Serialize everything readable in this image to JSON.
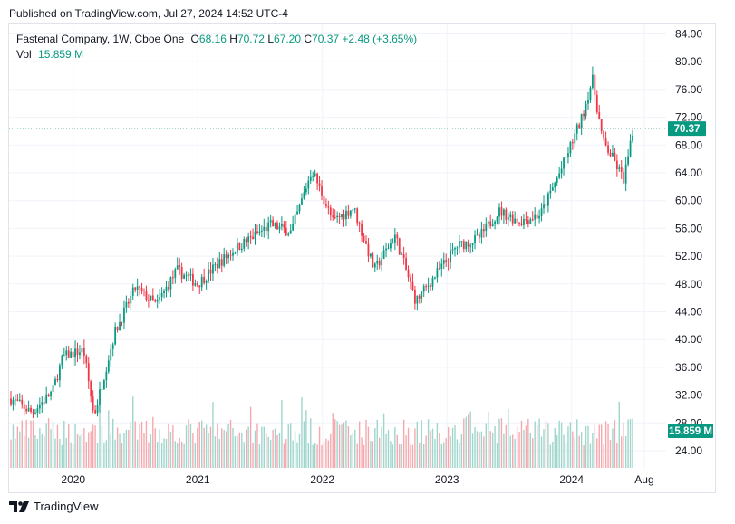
{
  "header": {
    "published": "Published on TradingView.com, Jul 27, 2024 14:52 UTC-4"
  },
  "legend": {
    "symbol": "Fastenal Company, 1W, Cboe One",
    "o_label": "O",
    "o": "68.16",
    "h_label": "H",
    "h": "70.72",
    "l_label": "L",
    "l": "67.20",
    "c_label": "C",
    "c": "70.37",
    "change": "+2.48 (+3.65%)",
    "vol_label": "Vol",
    "vol": "15.859 M"
  },
  "footer": {
    "brand": "TradingView"
  },
  "colors": {
    "up": "#089981",
    "down": "#f23645",
    "up_vol": "#9fd6cc",
    "down_vol": "#f5a9af",
    "grid": "#f0f3fa"
  },
  "chart_data": {
    "type": "candlestick",
    "title": "Fastenal Company, 1W, Cboe One",
    "y_ticks": [
      "84.00",
      "80.00",
      "76.00",
      "72.00",
      "68.00",
      "64.00",
      "60.00",
      "56.00",
      "52.00",
      "48.00",
      "44.00",
      "40.00",
      "36.00",
      "32.00",
      "28.00",
      "24.00"
    ],
    "ylim": [
      21.5,
      86
    ],
    "x_ticks": [
      "2020",
      "2021",
      "2022",
      "2023",
      "2024",
      "Aug"
    ],
    "last_price_label": "70.37",
    "last_volume_label": "15.859 M",
    "price_path": [
      {
        "x": "2019-07",
        "y": 31.5
      },
      {
        "x": "2019-09",
        "y": 29.5
      },
      {
        "x": "2019-11",
        "y": 32.5
      },
      {
        "x": "2019-12",
        "y": 37.5
      },
      {
        "x": "2020-02",
        "y": 38.5
      },
      {
        "x": "2020-03",
        "y": 29.0
      },
      {
        "x": "2020-05",
        "y": 41.0
      },
      {
        "x": "2020-07",
        "y": 47.5
      },
      {
        "x": "2020-09",
        "y": 45.0
      },
      {
        "x": "2020-11",
        "y": 50.0
      },
      {
        "x": "2021-01",
        "y": 48.0
      },
      {
        "x": "2021-03",
        "y": 51.0
      },
      {
        "x": "2021-05",
        "y": 53.5
      },
      {
        "x": "2021-08",
        "y": 56.5
      },
      {
        "x": "2021-10",
        "y": 55.5
      },
      {
        "x": "2021-12",
        "y": 64.5
      },
      {
        "x": "2022-02",
        "y": 57.0
      },
      {
        "x": "2022-04",
        "y": 59.0
      },
      {
        "x": "2022-06",
        "y": 50.0
      },
      {
        "x": "2022-08",
        "y": 55.0
      },
      {
        "x": "2022-10",
        "y": 45.5
      },
      {
        "x": "2022-12",
        "y": 49.5
      },
      {
        "x": "2023-02",
        "y": 53.5
      },
      {
        "x": "2023-04",
        "y": 54.5
      },
      {
        "x": "2023-06",
        "y": 58.5
      },
      {
        "x": "2023-08",
        "y": 57.0
      },
      {
        "x": "2023-10",
        "y": 58.0
      },
      {
        "x": "2023-12",
        "y": 64.5
      },
      {
        "x": "2024-02",
        "y": 72.0
      },
      {
        "x": "2024-03",
        "y": 77.5
      },
      {
        "x": "2024-04",
        "y": 68.5
      },
      {
        "x": "2024-05",
        "y": 66.0
      },
      {
        "x": "2024-06",
        "y": 63.0
      },
      {
        "x": "2024-07",
        "y": 70.37
      }
    ]
  }
}
